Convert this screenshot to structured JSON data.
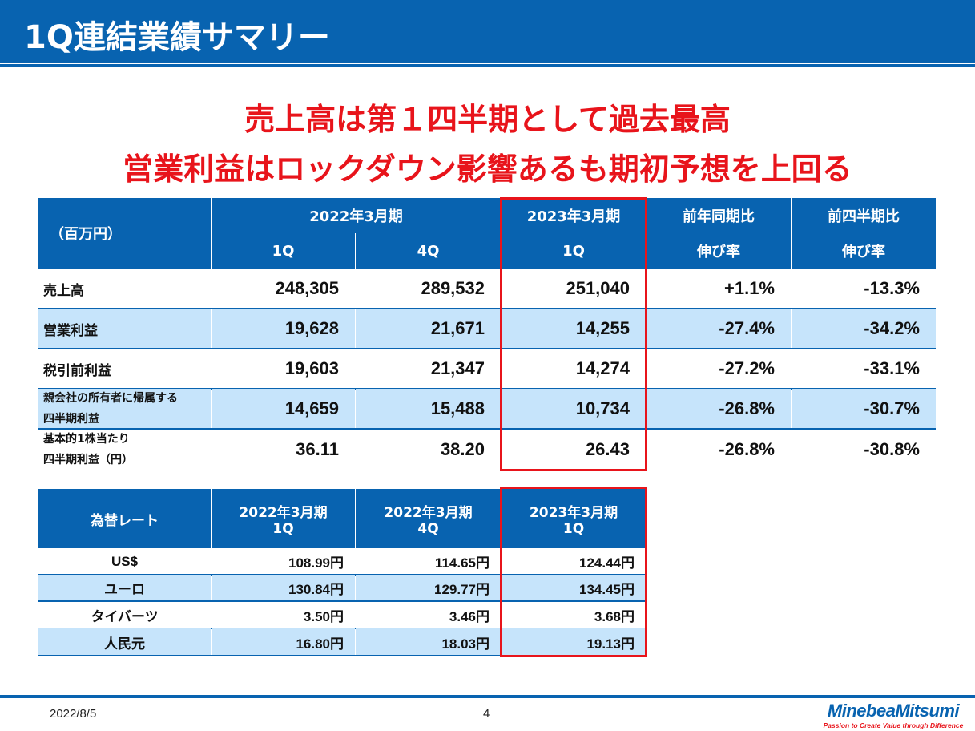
{
  "slide": {
    "title": "1Q連結業績サマリー",
    "headline": [
      "売上高は第１四半期として過去最高",
      "営業利益はロックダウン影響あるも期初予想を上回る"
    ]
  },
  "results_table": {
    "unit": "（百万円）",
    "group_2022": "2022年3月期",
    "group_2023": "2023年3月期",
    "yoy": "前年同期比",
    "qoq": "前四半期比",
    "sub": [
      "1Q",
      "4Q",
      "1Q",
      "伸び率",
      "伸び率"
    ],
    "rows": [
      {
        "label": "売上高",
        "values": [
          "248,305",
          "289,532",
          "251,040",
          "+1.1%",
          "-13.3%"
        ]
      },
      {
        "label": "営業利益",
        "values": [
          "19,628",
          "21,671",
          "14,255",
          "-27.4%",
          "-34.2%"
        ]
      },
      {
        "label": "税引前利益",
        "values": [
          "19,603",
          "21,347",
          "14,274",
          "-27.2%",
          "-33.1%"
        ]
      },
      {
        "label": "親会社の所有者に帰属する\n四半期利益",
        "values": [
          "14,659",
          "15,488",
          "10,734",
          "-26.8%",
          "-30.7%"
        ]
      },
      {
        "label": "基本的1株当たり\n四半期利益（円）",
        "values": [
          "36.11",
          "38.20",
          "26.43",
          "-26.8%",
          "-30.8%"
        ]
      }
    ]
  },
  "fx_table": {
    "headers": [
      "為替レート",
      "2022年3月期\n1Q",
      "2022年3月期\n4Q",
      "2023年3月期\n1Q"
    ],
    "rows": [
      {
        "label": "US$",
        "values": [
          "108.99円",
          "114.65円",
          "124.44円"
        ]
      },
      {
        "label": "ユーロ",
        "values": [
          "130.84円",
          "129.77円",
          "134.45円"
        ]
      },
      {
        "label": "タイバーツ",
        "values": [
          "3.50円",
          "3.46円",
          "3.68円"
        ]
      },
      {
        "label": "人民元",
        "values": [
          "16.80円",
          "18.03円",
          "19.13円"
        ]
      }
    ]
  },
  "footer": {
    "date": "2022/8/5",
    "page": "4",
    "logo": "MinebeaMitsumi",
    "tagline": "Passion to Create Value through Difference"
  },
  "colors": {
    "brand_blue": "#0863b0",
    "highlight_red": "#e8141b",
    "row_alt": "#c6e4fb"
  }
}
